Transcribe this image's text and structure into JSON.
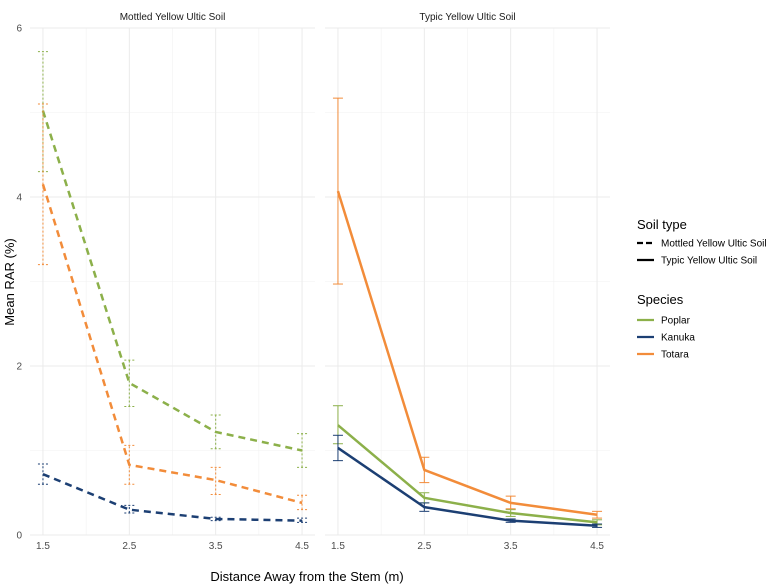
{
  "chart_data": {
    "type": "line",
    "xlabel": "Distance Away from the Stem (m)",
    "ylabel": "Mean RAR (%)",
    "x": [
      1.5,
      2.5,
      3.5,
      4.5
    ],
    "x_tick_labels": [
      "1.5",
      "2.5",
      "3.5",
      "4.5"
    ],
    "ylim": [
      0,
      6
    ],
    "y_ticks": [
      0,
      2,
      4,
      6
    ],
    "y_tick_labels": [
      "0",
      "2",
      "4",
      "6"
    ],
    "grid": true,
    "legend_position": "right",
    "panels": [
      {
        "title": "Mottled Yellow Ultic Soil",
        "line_style": "dashed",
        "series": [
          {
            "species": "Poplar",
            "values": [
              5.02,
              1.8,
              1.22,
              1.0
            ],
            "lower": [
              4.3,
              1.52,
              1.02,
              0.8
            ],
            "upper": [
              5.72,
              2.07,
              1.42,
              1.2
            ]
          },
          {
            "species": "Kanuka",
            "values": [
              0.72,
              0.3,
              0.19,
              0.17
            ],
            "lower": [
              0.6,
              0.26,
              0.17,
              0.15
            ],
            "upper": [
              0.84,
              0.35,
              0.21,
              0.2
            ]
          },
          {
            "species": "Totara",
            "values": [
              4.15,
              0.83,
              0.65,
              0.38
            ],
            "lower": [
              3.2,
              0.6,
              0.48,
              0.3
            ],
            "upper": [
              5.1,
              1.06,
              0.8,
              0.47
            ]
          }
        ]
      },
      {
        "title": "Typic Yellow Ultic Soil",
        "line_style": "solid",
        "series": [
          {
            "species": "Poplar",
            "values": [
              1.3,
              0.44,
              0.26,
              0.15
            ],
            "lower": [
              1.08,
              0.38,
              0.22,
              0.12
            ],
            "upper": [
              1.53,
              0.5,
              0.3,
              0.18
            ]
          },
          {
            "species": "Kanuka",
            "values": [
              1.03,
              0.33,
              0.17,
              0.11
            ],
            "lower": [
              0.88,
              0.28,
              0.15,
              0.09
            ],
            "upper": [
              1.18,
              0.38,
              0.19,
              0.13
            ]
          },
          {
            "species": "Totara",
            "values": [
              4.07,
              0.77,
              0.38,
              0.24
            ],
            "lower": [
              2.97,
              0.62,
              0.31,
              0.2
            ],
            "upper": [
              5.17,
              0.92,
              0.46,
              0.28
            ]
          }
        ]
      }
    ],
    "species_colors": {
      "Poplar": "#8cb04a",
      "Kanuka": "#1c3f73",
      "Totara": "#f28c3a"
    },
    "legend": {
      "soil_title": "Soil type",
      "soil_entries": [
        {
          "label": "Mottled Yellow Ultic Soil",
          "line_style": "dashed"
        },
        {
          "label": "Typic Yellow Ultic Soil",
          "line_style": "solid"
        }
      ],
      "species_title": "Species",
      "species_entries": [
        "Poplar",
        "Kanuka",
        "Totara"
      ]
    }
  }
}
